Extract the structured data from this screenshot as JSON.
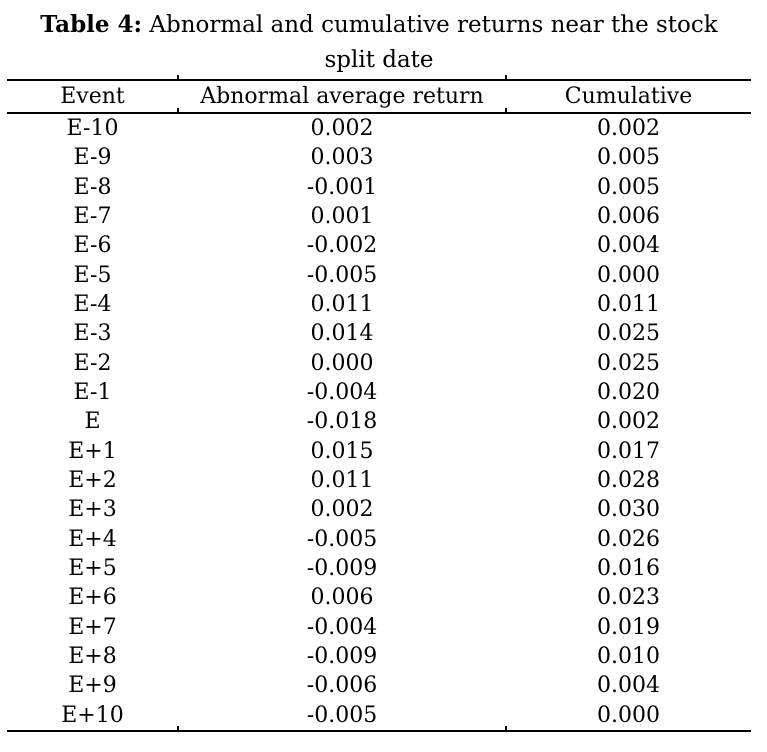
{
  "title": {
    "label": "Table 4:",
    "rest": " Abnormal and cumulative returns near the stock",
    "line2": "split date"
  },
  "table": {
    "headers": [
      "Event",
      "Abnormal average return",
      "Cumulative"
    ],
    "rows": [
      {
        "event": "E-10",
        "abnormal": "0.002",
        "cumulative": "0.002"
      },
      {
        "event": "E-9",
        "abnormal": "0.003",
        "cumulative": "0.005"
      },
      {
        "event": "E-8",
        "abnormal": "-0.001",
        "cumulative": "0.005"
      },
      {
        "event": "E-7",
        "abnormal": "0.001",
        "cumulative": "0.006"
      },
      {
        "event": "E-6",
        "abnormal": "-0.002",
        "cumulative": "0.004"
      },
      {
        "event": "E-5",
        "abnormal": "-0.005",
        "cumulative": "0.000"
      },
      {
        "event": "E-4",
        "abnormal": "0.011",
        "cumulative": "0.011"
      },
      {
        "event": "E-3",
        "abnormal": "0.014",
        "cumulative": "0.025"
      },
      {
        "event": "E-2",
        "abnormal": "0.000",
        "cumulative": "0.025"
      },
      {
        "event": "E-1",
        "abnormal": "-0.004",
        "cumulative": "0.020"
      },
      {
        "event": "E",
        "abnormal": "-0.018",
        "cumulative": "0.002"
      },
      {
        "event": "E+1",
        "abnormal": "0.015",
        "cumulative": "0.017"
      },
      {
        "event": "E+2",
        "abnormal": "0.011",
        "cumulative": "0.028"
      },
      {
        "event": "E+3",
        "abnormal": "0.002",
        "cumulative": "0.030"
      },
      {
        "event": "E+4",
        "abnormal": "-0.005",
        "cumulative": "0.026"
      },
      {
        "event": "E+5",
        "abnormal": "-0.009",
        "cumulative": "0.016"
      },
      {
        "event": "E+6",
        "abnormal": "0.006",
        "cumulative": "0.023"
      },
      {
        "event": "E+7",
        "abnormal": "-0.004",
        "cumulative": "0.019"
      },
      {
        "event": "E+8",
        "abnormal": "-0.009",
        "cumulative": "0.010"
      },
      {
        "event": "E+9",
        "abnormal": "-0.006",
        "cumulative": "0.004"
      },
      {
        "event": "E+10",
        "abnormal": "-0.005",
        "cumulative": "0.000"
      }
    ]
  },
  "colors": {
    "text": "#000000",
    "background": "#ffffff",
    "rule": "#000000"
  }
}
